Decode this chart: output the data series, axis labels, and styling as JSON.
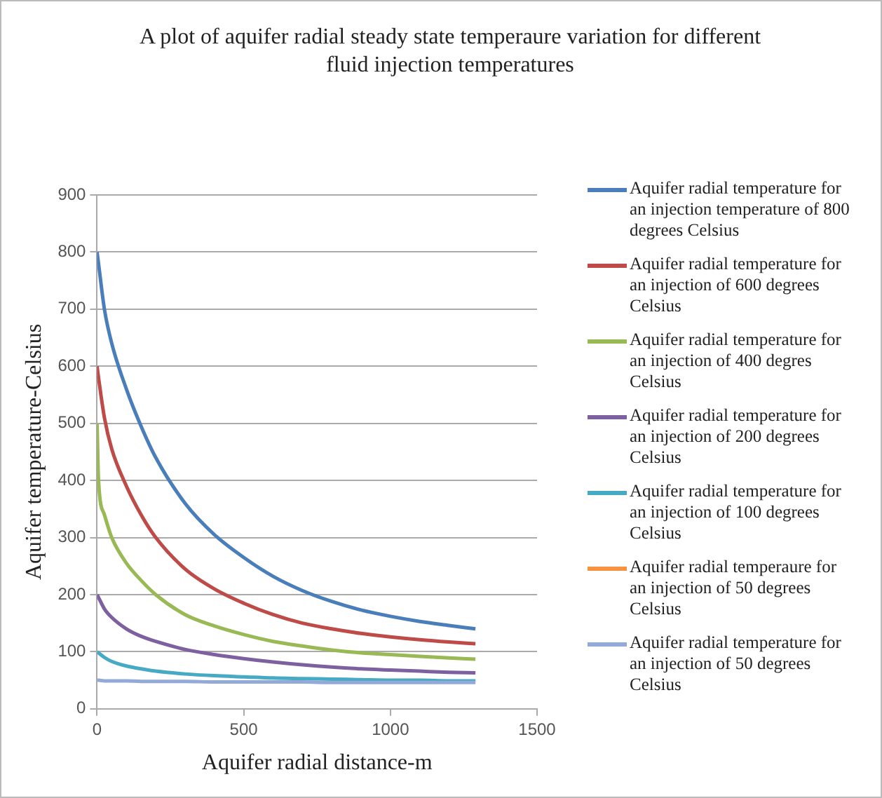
{
  "chart_data": {
    "type": "line",
    "title": "A plot of aquifer radial steady state temperaure variation for different fluid injection temperatures",
    "xlabel": "Aquifer radial distance-m",
    "ylabel": "Aquifer temperature-Celsius",
    "x": [
      0,
      5,
      25,
      50,
      100,
      150,
      200,
      300,
      400,
      500,
      600,
      700,
      800,
      900,
      1000,
      1100,
      1200,
      1290
    ],
    "xlim": [
      0,
      1500
    ],
    "xticks": [
      0,
      500,
      1000,
      1500
    ],
    "ylim": [
      0,
      900
    ],
    "yticks": [
      0,
      100,
      200,
      300,
      400,
      500,
      600,
      700,
      800,
      900
    ],
    "grid": "y",
    "legend": "right",
    "marker": "none",
    "line_style": "solid",
    "series": [
      {
        "name": "Aquifer radial temperature for an injection temperature of 800 degrees Celsius",
        "color": "#4a7ebb",
        "values": [
          800,
          780,
          700,
          640,
          560,
          495,
          440,
          360,
          305,
          265,
          232,
          207,
          188,
          173,
          162,
          153,
          146,
          140
        ]
      },
      {
        "name": "Aquifer radial temperature for an injection of 600 degrees Celsius",
        "color": "#be4b48",
        "values": [
          600,
          580,
          510,
          455,
          390,
          340,
          300,
          245,
          210,
          185,
          165,
          150,
          140,
          132,
          126,
          121,
          117,
          114
        ]
      },
      {
        "name": "Aquifer radial temperature for an injection of 400 degres Celsius",
        "color": "#98b954",
        "values": [
          500,
          400,
          340,
          300,
          255,
          225,
          200,
          165,
          145,
          130,
          118,
          110,
          103,
          98,
          95,
          92,
          89,
          87
        ]
      },
      {
        "name": "Aquifer radial temperature for an injection of 200 degrees Celsius",
        "color": "#7d60a0",
        "values": [
          200,
          195,
          175,
          160,
          140,
          127,
          118,
          104,
          95,
          88,
          82,
          77,
          73,
          70,
          68,
          66,
          64,
          63
        ]
      },
      {
        "name": "Aquifer radial temperature for an injection of 100 degrees Celsius",
        "color": "#46aac5",
        "values": [
          100,
          98,
          90,
          83,
          75,
          70,
          66,
          61,
          58,
          56,
          54,
          53,
          52,
          51,
          50,
          50,
          49,
          49
        ]
      },
      {
        "name": "Aquifer radial temperaure for an injection of 50 degrees Celsius",
        "color": "#f69240",
        "values": [
          null,
          null,
          null,
          null,
          null,
          null,
          null,
          null,
          null,
          null,
          null,
          null,
          null,
          null,
          null,
          null,
          null,
          null
        ]
      },
      {
        "name": "Aquifer radial temperature for an injection of 50 degrees Celsius",
        "color": "#93a9d8",
        "values": [
          50,
          50,
          49,
          49,
          49,
          48,
          48,
          48,
          47,
          47,
          47,
          47,
          46,
          46,
          46,
          46,
          46,
          46
        ]
      }
    ]
  }
}
